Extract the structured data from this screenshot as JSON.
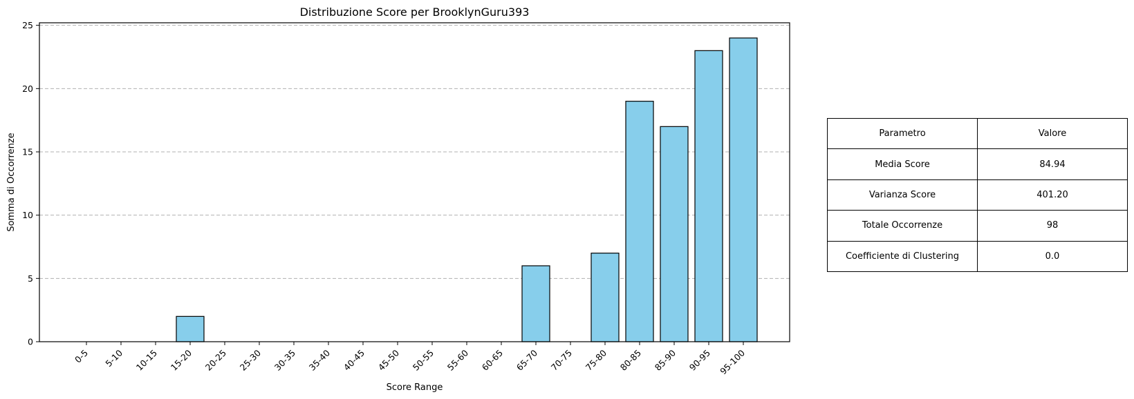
{
  "chart_data": {
    "type": "bar",
    "title": "Distribuzione Score per BrooklynGuru393",
    "xlabel": "Score Range",
    "ylabel": "Somma di Occorrenze",
    "categories": [
      "0-5",
      "5-10",
      "10-15",
      "15-20",
      "20-25",
      "25-30",
      "30-35",
      "35-40",
      "40-45",
      "45-50",
      "50-55",
      "55-60",
      "60-65",
      "65-70",
      "70-75",
      "75-80",
      "80-85",
      "85-90",
      "90-95",
      "95-100"
    ],
    "values": [
      0,
      0,
      0,
      2,
      0,
      0,
      0,
      0,
      0,
      0,
      0,
      0,
      0,
      6,
      0,
      7,
      19,
      17,
      23,
      24
    ],
    "ylim": [
      0,
      25.2
    ],
    "yticks": [
      0,
      5,
      10,
      15,
      20,
      25
    ],
    "grid": "y-dashed",
    "bar_color": "#87ceeb",
    "edge_color": "#000000"
  },
  "table": {
    "header": [
      "Parametro",
      "Valore"
    ],
    "rows": [
      [
        "Media Score",
        "84.94"
      ],
      [
        "Varianza Score",
        "401.20"
      ],
      [
        "Totale Occorrenze",
        "98"
      ],
      [
        "Coefficiente di Clustering",
        "0.0"
      ]
    ]
  }
}
